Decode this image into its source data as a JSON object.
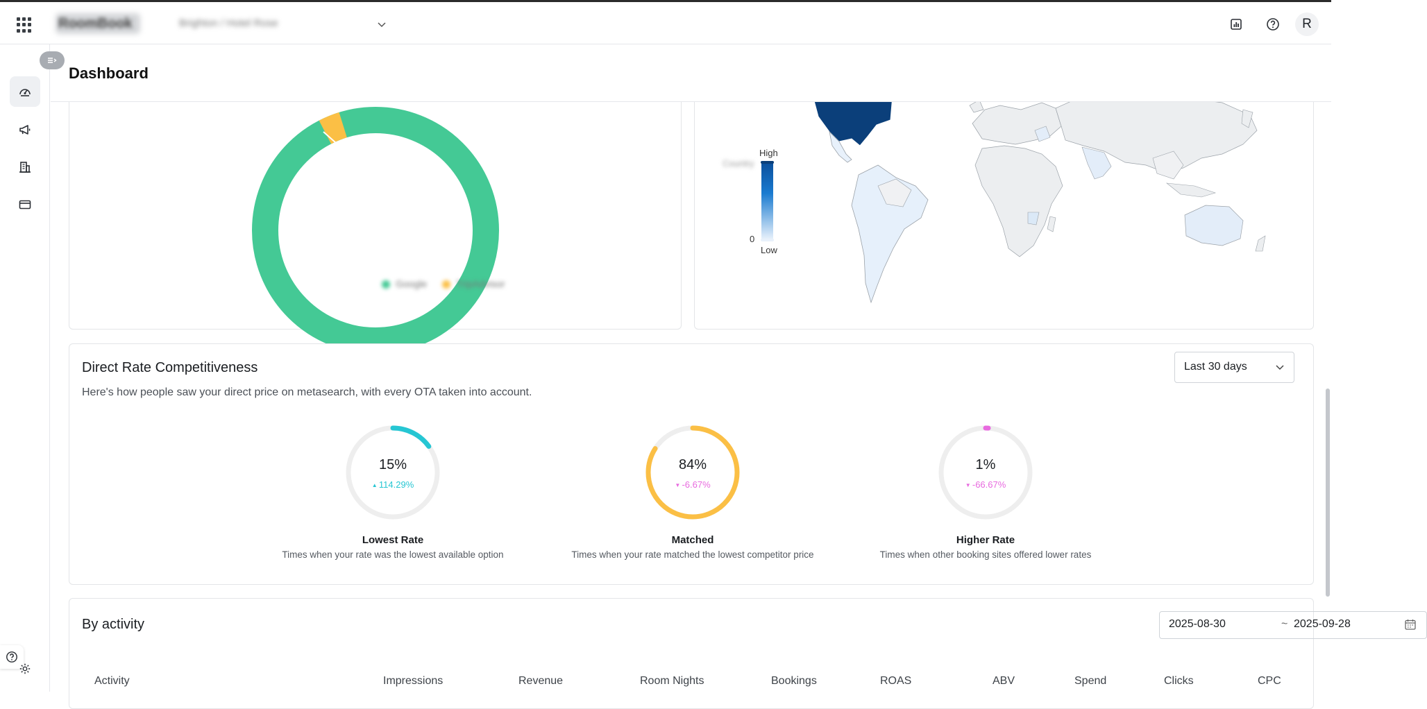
{
  "app": {
    "brand_name": "RoomBook",
    "hotel_selector": "Brighton / Hotel Rose",
    "avatar_initial": "R"
  },
  "page": {
    "title": "Dashboard"
  },
  "channel_chart": {
    "legend": [
      "Google",
      "TripAdvisor"
    ],
    "colors": {
      "google": "#44c995",
      "tripadvisor": "#fbbf45"
    }
  },
  "map_legend": {
    "high": "High",
    "low": "Low",
    "zero": "0",
    "country_label": "Country"
  },
  "competitiveness": {
    "title": "Direct Rate Competitiveness",
    "subtitle": "Here's how people saw your direct price on metasearch, with every OTA taken into account.",
    "range": "Last 30 days",
    "metrics": [
      {
        "percent": "15%",
        "value": 15,
        "delta": "114.29%",
        "direction": "up",
        "color": "#26c6d3",
        "delta_color": "#26c6d3",
        "title": "Lowest Rate",
        "desc": "Times when your rate was the lowest available option"
      },
      {
        "percent": "84%",
        "value": 84,
        "delta": "-6.67%",
        "direction": "down",
        "color": "#fbbf45",
        "delta_color": "#e86adf",
        "title": "Matched",
        "desc": "Times when your rate matched the lowest competitor price"
      },
      {
        "percent": "1%",
        "value": 1,
        "delta": "-66.67%",
        "direction": "down",
        "color": "#e86adf",
        "delta_color": "#e86adf",
        "title": "Higher Rate",
        "desc": "Times when other booking sites offered lower rates"
      }
    ]
  },
  "activity": {
    "title": "By activity",
    "date_from": "2025-08-30",
    "date_sep": "~",
    "date_to": "2025-09-28",
    "columns": [
      "Activity",
      "Impressions",
      "Revenue",
      "Room Nights",
      "Bookings",
      "ROAS",
      "ABV",
      "Spend",
      "Clicks",
      "CPC"
    ]
  }
}
